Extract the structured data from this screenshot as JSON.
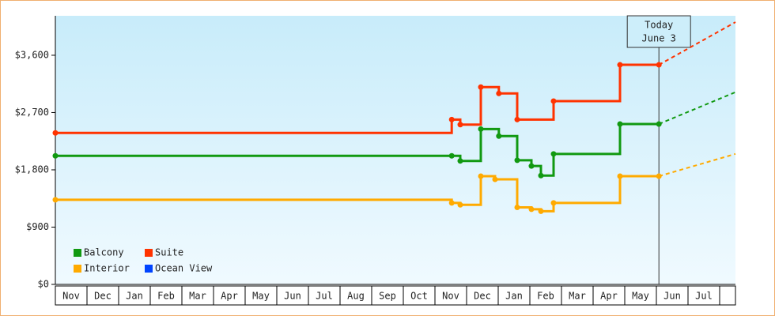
{
  "chart_data": {
    "type": "step-line",
    "months": [
      "Nov",
      "Dec",
      "Jan",
      "Feb",
      "Mar",
      "Apr",
      "May",
      "Jun",
      "Jul",
      "Aug",
      "Sep",
      "Oct",
      "Nov",
      "Dec",
      "Jan",
      "Feb",
      "Mar",
      "Apr",
      "May",
      "Jun",
      "Jul"
    ],
    "xlim": [
      0,
      21.5
    ],
    "ylim": [
      0,
      4220
    ],
    "yticks": [
      {
        "value": 0,
        "label": "$0"
      },
      {
        "value": 900,
        "label": "$900"
      },
      {
        "value": 1800,
        "label": "$1,800"
      },
      {
        "value": 2700,
        "label": "$2,700"
      },
      {
        "value": 3600,
        "label": "$3,600"
      }
    ],
    "today": {
      "x": 19.08,
      "label": [
        "Today",
        "June 3"
      ]
    },
    "forecast_x": [
      19.08,
      21.5
    ],
    "series": [
      {
        "name": "Balcony",
        "color": "#119911",
        "x": [
          0,
          12.53,
          12.8,
          13.45,
          14.02,
          14.6,
          15.05,
          15.35,
          15.75,
          17.85,
          19.08
        ],
        "values": [
          2020,
          2020,
          1940,
          2440,
          2330,
          1950,
          1860,
          1710,
          2050,
          2520,
          2520
        ],
        "forecast": [
          2520,
          3020
        ]
      },
      {
        "name": "Suite",
        "color": "#ff3300",
        "x": [
          0,
          12.53,
          12.8,
          13.45,
          14.02,
          14.6,
          15.75,
          17.85,
          19.08
        ],
        "values": [
          2380,
          2590,
          2510,
          3100,
          3000,
          2590,
          2880,
          3450,
          3450
        ],
        "forecast": [
          3450,
          4120
        ]
      },
      {
        "name": "Interior",
        "color": "#ffaa00",
        "x": [
          0,
          12.53,
          12.8,
          13.45,
          13.9,
          14.6,
          15.05,
          15.35,
          15.75,
          17.85,
          19.08
        ],
        "values": [
          1330,
          1280,
          1250,
          1700,
          1650,
          1210,
          1180,
          1150,
          1280,
          1700,
          1700
        ],
        "forecast": [
          1700,
          2050
        ]
      },
      {
        "name": "Ocean View",
        "color": "#0044ff",
        "x": [],
        "values": []
      }
    ]
  }
}
